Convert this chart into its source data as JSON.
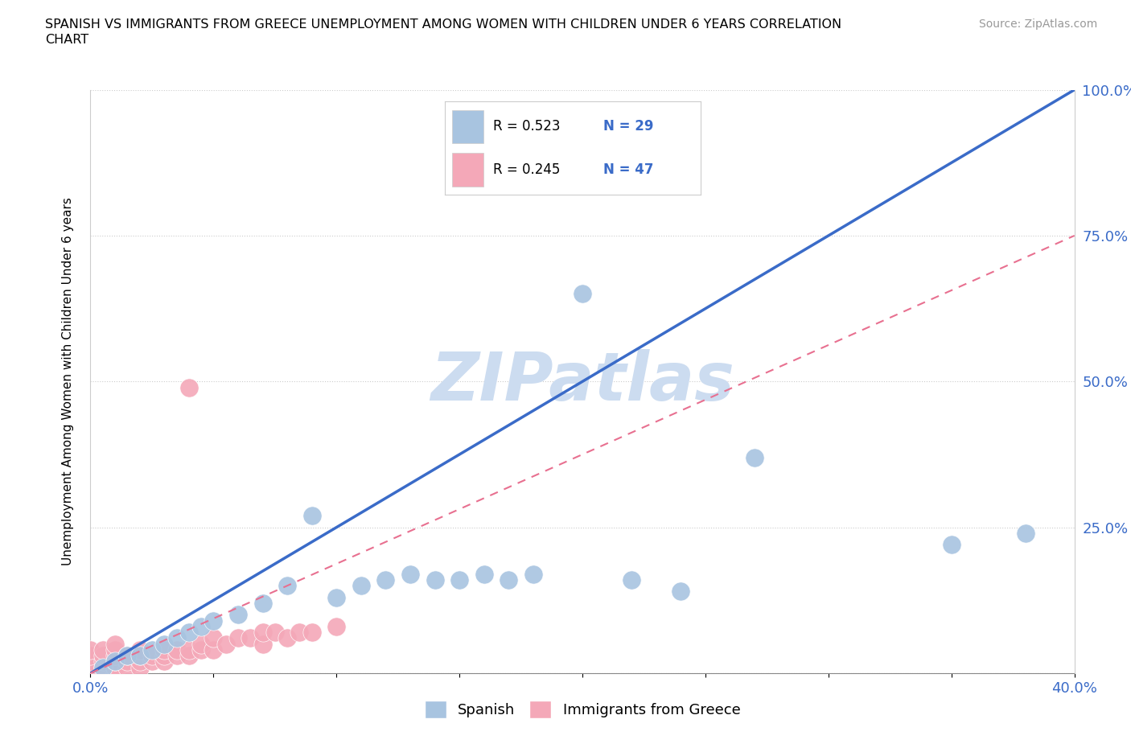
{
  "title_line1": "SPANISH VS IMMIGRANTS FROM GREECE UNEMPLOYMENT AMONG WOMEN WITH CHILDREN UNDER 6 YEARS CORRELATION",
  "title_line2": "CHART",
  "source": "Source: ZipAtlas.com",
  "ylabel": "Unemployment Among Women with Children Under 6 years",
  "xlim": [
    0.0,
    0.4
  ],
  "ylim": [
    0.0,
    1.0
  ],
  "R_spanish": 0.523,
  "N_spanish": 29,
  "R_greece": 0.245,
  "N_greece": 47,
  "spanish_color": "#a8c4e0",
  "greece_color": "#f4a8b8",
  "spanish_line_color": "#3a6bc8",
  "greece_line_color": "#e87090",
  "watermark": "ZIPatlas",
  "watermark_color": "#ccdcf0",
  "spanish_x": [
    0.005,
    0.01,
    0.015,
    0.02,
    0.025,
    0.03,
    0.035,
    0.04,
    0.045,
    0.05,
    0.06,
    0.07,
    0.08,
    0.09,
    0.1,
    0.11,
    0.12,
    0.13,
    0.14,
    0.15,
    0.16,
    0.17,
    0.18,
    0.2,
    0.22,
    0.24,
    0.27,
    0.35,
    0.38
  ],
  "spanish_y": [
    0.01,
    0.02,
    0.03,
    0.03,
    0.04,
    0.05,
    0.06,
    0.07,
    0.08,
    0.09,
    0.1,
    0.12,
    0.15,
    0.27,
    0.13,
    0.15,
    0.16,
    0.17,
    0.16,
    0.16,
    0.17,
    0.16,
    0.17,
    0.65,
    0.16,
    0.14,
    0.37,
    0.22,
    0.24
  ],
  "greece_x": [
    0.0,
    0.0,
    0.0,
    0.0,
    0.0,
    0.005,
    0.005,
    0.005,
    0.005,
    0.005,
    0.01,
    0.01,
    0.01,
    0.01,
    0.01,
    0.01,
    0.015,
    0.015,
    0.015,
    0.02,
    0.02,
    0.02,
    0.02,
    0.025,
    0.025,
    0.03,
    0.03,
    0.03,
    0.035,
    0.035,
    0.04,
    0.04,
    0.04,
    0.045,
    0.045,
    0.05,
    0.05,
    0.055,
    0.06,
    0.065,
    0.07,
    0.07,
    0.075,
    0.08,
    0.085,
    0.09,
    0.1
  ],
  "greece_y": [
    0.0,
    0.01,
    0.02,
    0.03,
    0.04,
    0.0,
    0.01,
    0.02,
    0.03,
    0.04,
    0.0,
    0.01,
    0.02,
    0.03,
    0.04,
    0.05,
    0.01,
    0.02,
    0.03,
    0.01,
    0.02,
    0.03,
    0.04,
    0.02,
    0.03,
    0.02,
    0.03,
    0.04,
    0.03,
    0.04,
    0.03,
    0.04,
    0.49,
    0.04,
    0.05,
    0.04,
    0.06,
    0.05,
    0.06,
    0.06,
    0.05,
    0.07,
    0.07,
    0.06,
    0.07,
    0.07,
    0.08
  ]
}
